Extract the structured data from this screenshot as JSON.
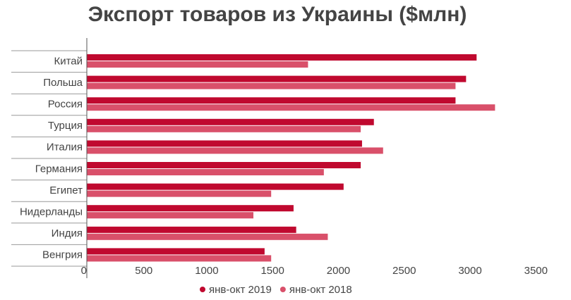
{
  "chart_data": {
    "type": "hbar",
    "title": "Экспорт товаров из Украины ($млн)",
    "categories": [
      "Китай",
      "Польша",
      "Россия",
      "Турция",
      "Италия",
      "Германия",
      "Египет",
      "Нидерланды",
      "Индия",
      "Венгрия"
    ],
    "series": [
      {
        "name": "янв-окт 2019",
        "color": "#c0092f",
        "values": [
          2960,
          2880,
          2800,
          2180,
          2090,
          2080,
          1950,
          1570,
          1590,
          1350
        ]
      },
      {
        "name": "янв-окт 2018",
        "color": "#d9506a",
        "values": [
          1680,
          2800,
          3100,
          2080,
          2250,
          1800,
          1400,
          1265,
          1830,
          1400
        ]
      }
    ],
    "xlim": [
      0,
      3500
    ],
    "xticks": [
      0,
      500,
      1000,
      1500,
      2000,
      2500,
      3000,
      3500
    ],
    "legend": "bottom"
  }
}
